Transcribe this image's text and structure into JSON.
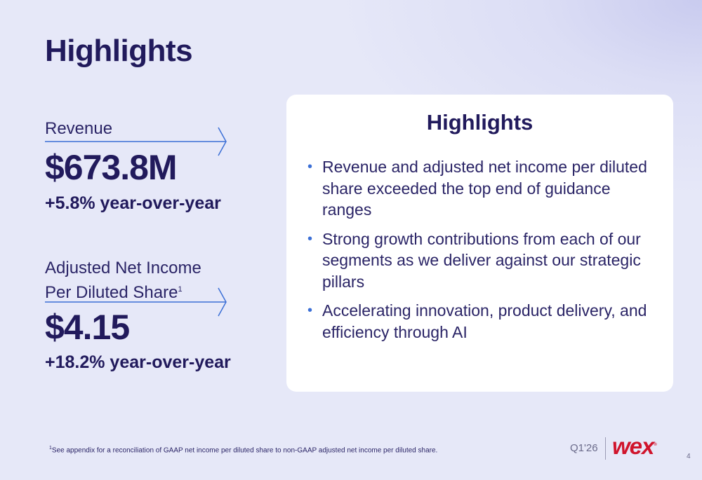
{
  "title": "Highlights",
  "metrics": [
    {
      "label": "Revenue",
      "value": "$673.8M",
      "change": "+5.8% year-over-year"
    },
    {
      "label_line1": "Adjusted Net Income",
      "label_line2": "Per Diluted Share",
      "label_sup": "1",
      "value": "$4.15",
      "change": "+18.2% year-over-year"
    }
  ],
  "card": {
    "title": "Highlights",
    "bullets": [
      "Revenue and adjusted net income per diluted share exceeded the top end of guidance ranges",
      "Strong growth contributions from each of our segments as we deliver against our strategic pillars",
      "Accelerating innovation, product delivery, and efficiency through AI"
    ]
  },
  "footer": {
    "footnote_marker": "1",
    "footnote": "See appendix for a reconciliation of GAAP net income per diluted share to non-GAAP adjusted net income per diluted share.",
    "quarter": "Q1'26",
    "logo": "wex",
    "page_number": "4"
  },
  "colors": {
    "navy": "#211a5c",
    "accent_blue": "#3b6fd6",
    "brand_red": "#d0142c",
    "background": "#e6e8f8"
  },
  "icons": [
    "arrow-right-icon",
    "bullet-dot-icon"
  ]
}
